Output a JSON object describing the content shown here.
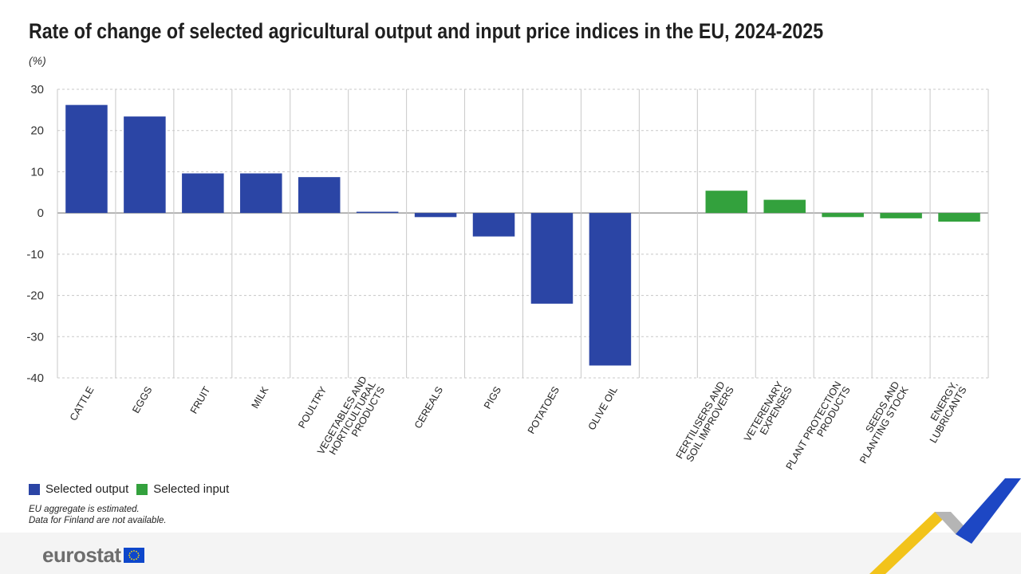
{
  "title": "Rate of change of selected agricultural output and input price indices in the EU, 2024-2025",
  "unit": "(%)",
  "legend": {
    "output_label": "Selected output",
    "input_label": "Selected input"
  },
  "notes": [
    "EU aggregate is estimated.",
    "Data for Finland are not available."
  ],
  "logo": {
    "text": "eurostat"
  },
  "colors": {
    "output": "#2b45a5",
    "input": "#33a13d",
    "grid": "#c8c8c8",
    "axis": "#888888"
  },
  "chart_data": {
    "type": "bar",
    "title": "Rate of change of selected agricultural output and input price indices in the EU, 2024-2025",
    "ylabel": "(%)",
    "ylim": [
      -40,
      30
    ],
    "yticks": [
      30,
      20,
      10,
      0,
      -10,
      -20,
      -30,
      -40
    ],
    "grid": true,
    "legend_position": "bottom-left",
    "categories": [
      [
        "CATTLE"
      ],
      [
        "EGGS"
      ],
      [
        "FRUIT"
      ],
      [
        "MILK"
      ],
      [
        "POULTRY"
      ],
      [
        "VEGETABLES AND",
        "HORTICULTURAL",
        "PRODUCTS"
      ],
      [
        "CEREALS"
      ],
      [
        "PIGS"
      ],
      [
        "POTATOES"
      ],
      [
        "OLIVE OIL"
      ],
      [],
      [
        "FERTILISERS AND",
        "SOIL IMPROVERS"
      ],
      [
        "VETERENARY",
        "EXPENSES"
      ],
      [
        "PLANT PROTECTION",
        "PRODUCTS"
      ],
      [
        "SEEDS AND",
        "PLANTING STOCK"
      ],
      [
        "ENERGY,",
        "LUBRICANTS"
      ]
    ],
    "series": [
      {
        "name": "Selected output",
        "values": [
          26.2,
          23.4,
          9.6,
          9.6,
          8.7,
          0.3,
          -1.0,
          -5.7,
          -22.0,
          -37.0,
          null,
          null,
          null,
          null,
          null,
          null
        ]
      },
      {
        "name": "Selected input",
        "values": [
          null,
          null,
          null,
          null,
          null,
          null,
          null,
          null,
          null,
          null,
          null,
          5.4,
          3.2,
          -1.0,
          -1.3,
          -2.1
        ]
      }
    ]
  }
}
